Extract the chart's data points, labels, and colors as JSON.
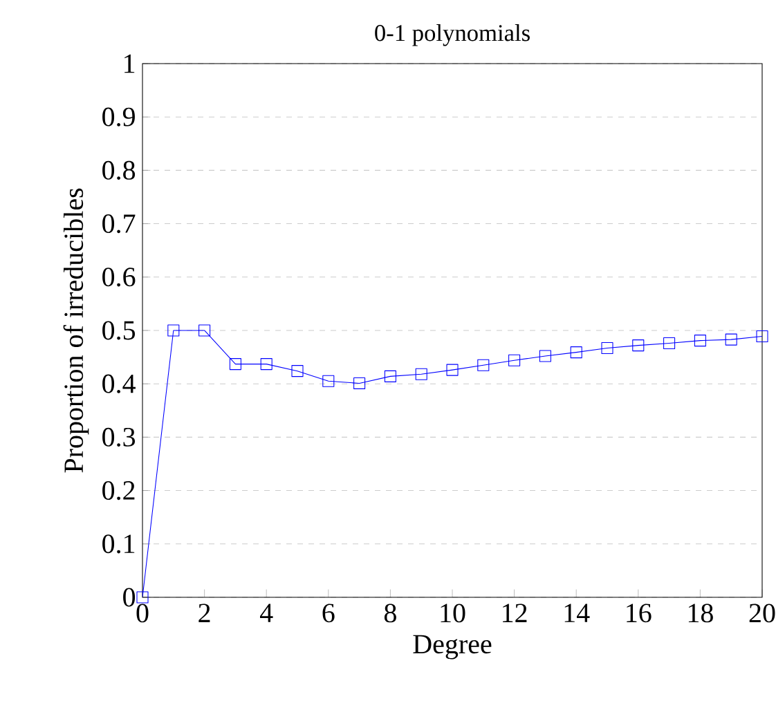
{
  "chart_data": {
    "type": "line",
    "title": "0-1 polynomials",
    "xlabel": "Degree",
    "ylabel": "Proportion of irreducibles",
    "x": [
      0,
      1,
      2,
      3,
      4,
      5,
      6,
      7,
      8,
      9,
      10,
      11,
      12,
      13,
      14,
      15,
      16,
      17,
      18,
      19,
      20
    ],
    "series": [
      {
        "color": "#0000ff",
        "values": [
          0,
          0.5,
          0.5,
          0.437,
          0.437,
          0.424,
          0.405,
          0.401,
          0.414,
          0.418,
          0.426,
          0.435,
          0.444,
          0.452,
          0.459,
          0.467,
          0.472,
          0.476,
          0.481,
          0.483,
          0.489
        ]
      }
    ],
    "xlim": [
      0,
      20
    ],
    "ylim": [
      0,
      1
    ],
    "xticks": [
      0,
      2,
      4,
      6,
      8,
      10,
      12,
      14,
      16,
      18,
      20
    ],
    "yticks": [
      0,
      0.1,
      0.2,
      0.3,
      0.4,
      0.5,
      0.6,
      0.7,
      0.8,
      0.9,
      1
    ],
    "grid": "y",
    "marker": "square",
    "line_style": "solid"
  }
}
